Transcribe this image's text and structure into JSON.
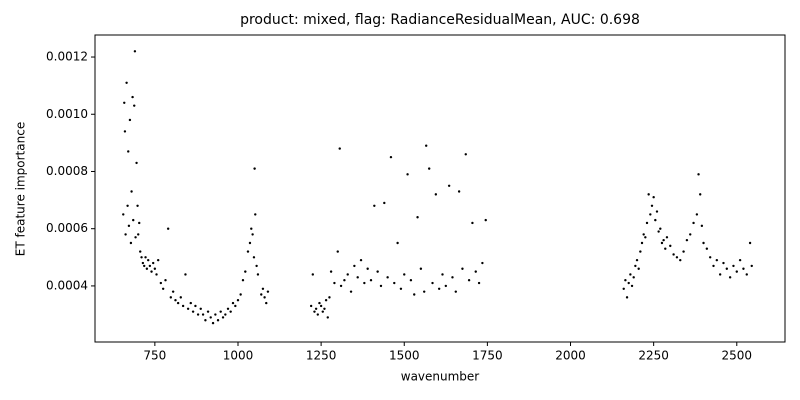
{
  "chart_data": {
    "type": "scatter",
    "title": "product: mixed, flag: RadianceResidualMean, AUC: 0.698",
    "x_label": "wavenumber",
    "y_label": "ET feature importance",
    "xlim": [
      570,
      2645
    ],
    "ylim": [
      0.000204,
      0.001277
    ],
    "xticks": [
      750,
      1000,
      1250,
      1500,
      1750,
      2000,
      2250,
      2500
    ],
    "yticks": [
      0.0004,
      0.0006,
      0.0008,
      {
        "value": 0.001,
        "label": "0.0010"
      },
      0.0012
    ],
    "grid": false,
    "series": [
      {
        "color": "#000000",
        "x": [
          655,
          658,
          660,
          662,
          665,
          668,
          670,
          672,
          675,
          678,
          680,
          683,
          685,
          688,
          690,
          692,
          695,
          698,
          700,
          703,
          706,
          710,
          714,
          718,
          722,
          726,
          730,
          735,
          740,
          745,
          750,
          755,
          760,
          768,
          775,
          782,
          790,
          798,
          805,
          812,
          820,
          828,
          835,
          842,
          850,
          858,
          865,
          872,
          880,
          888,
          895,
          902,
          910,
          918,
          925,
          932,
          940,
          948,
          955,
          962,
          970,
          978,
          985,
          992,
          1000,
          1008,
          1015,
          1022,
          1030,
          1036,
          1040,
          1044,
          1048,
          1050,
          1052,
          1056,
          1060,
          1070,
          1075,
          1080,
          1085,
          1090,
          1220,
          1225,
          1230,
          1235,
          1240,
          1245,
          1250,
          1255,
          1260,
          1265,
          1270,
          1275,
          1280,
          1290,
          1300,
          1306,
          1310,
          1320,
          1330,
          1340,
          1350,
          1360,
          1370,
          1380,
          1390,
          1400,
          1410,
          1420,
          1430,
          1440,
          1450,
          1460,
          1470,
          1480,
          1490,
          1500,
          1510,
          1520,
          1530,
          1540,
          1550,
          1560,
          1566,
          1575,
          1585,
          1595,
          1605,
          1615,
          1625,
          1635,
          1645,
          1655,
          1665,
          1675,
          1685,
          1695,
          1705,
          1715,
          1725,
          1735,
          1745,
          2160,
          2165,
          2170,
          2175,
          2180,
          2185,
          2190,
          2195,
          2200,
          2205,
          2210,
          2215,
          2220,
          2225,
          2230,
          2235,
          2240,
          2245,
          2250,
          2255,
          2260,
          2265,
          2270,
          2275,
          2280,
          2285,
          2290,
          2300,
          2310,
          2320,
          2330,
          2340,
          2350,
          2360,
          2370,
          2380,
          2385,
          2390,
          2395,
          2400,
          2410,
          2420,
          2430,
          2440,
          2450,
          2460,
          2470,
          2480,
          2490,
          2500,
          2510,
          2520,
          2530,
          2540,
          2545
        ],
        "values": [
          0.00065,
          0.00104,
          0.00094,
          0.00058,
          0.00111,
          0.00068,
          0.00087,
          0.00061,
          0.00098,
          0.00055,
          0.00073,
          0.00106,
          0.00063,
          0.00103,
          0.00122,
          0.00057,
          0.00083,
          0.00068,
          0.00058,
          0.00062,
          0.00052,
          0.0005,
          0.00048,
          0.00047,
          0.0005,
          0.00046,
          0.00049,
          0.00047,
          0.00045,
          0.00048,
          0.00046,
          0.00044,
          0.00049,
          0.00041,
          0.00039,
          0.00042,
          0.0006,
          0.00036,
          0.00038,
          0.00035,
          0.00034,
          0.00036,
          0.00033,
          0.00044,
          0.00032,
          0.00034,
          0.00031,
          0.00033,
          0.0003,
          0.00032,
          0.0003,
          0.00028,
          0.00031,
          0.00029,
          0.00027,
          0.0003,
          0.00028,
          0.00031,
          0.00029,
          0.0003,
          0.00032,
          0.00031,
          0.00034,
          0.00033,
          0.00035,
          0.00037,
          0.00042,
          0.00045,
          0.00052,
          0.00055,
          0.0006,
          0.00058,
          0.0005,
          0.00081,
          0.00065,
          0.00047,
          0.00044,
          0.00037,
          0.00039,
          0.00036,
          0.00034,
          0.00038,
          0.00033,
          0.00044,
          0.00031,
          0.00032,
          0.0003,
          0.00034,
          0.00033,
          0.00031,
          0.00032,
          0.00035,
          0.00029,
          0.00036,
          0.00045,
          0.00041,
          0.00052,
          0.00088,
          0.0004,
          0.00042,
          0.00044,
          0.00038,
          0.00047,
          0.00043,
          0.00049,
          0.00041,
          0.00046,
          0.00042,
          0.00068,
          0.00045,
          0.0004,
          0.00069,
          0.00043,
          0.00085,
          0.00041,
          0.00055,
          0.00039,
          0.00044,
          0.00079,
          0.00042,
          0.00037,
          0.00064,
          0.00046,
          0.00038,
          0.00089,
          0.00081,
          0.00041,
          0.00072,
          0.00039,
          0.00044,
          0.0004,
          0.00075,
          0.00043,
          0.00038,
          0.00073,
          0.00046,
          0.00086,
          0.00042,
          0.00062,
          0.00045,
          0.00041,
          0.00048,
          0.00063,
          0.00039,
          0.00042,
          0.00036,
          0.00041,
          0.00044,
          0.0004,
          0.00043,
          0.00047,
          0.00049,
          0.00046,
          0.00052,
          0.00055,
          0.00058,
          0.00057,
          0.00062,
          0.00072,
          0.00065,
          0.00068,
          0.00071,
          0.00063,
          0.00066,
          0.00059,
          0.0006,
          0.00055,
          0.00056,
          0.00053,
          0.00057,
          0.00054,
          0.00051,
          0.0005,
          0.00049,
          0.00052,
          0.00056,
          0.00058,
          0.00062,
          0.00065,
          0.00079,
          0.00072,
          0.00061,
          0.00055,
          0.00053,
          0.0005,
          0.00047,
          0.00049,
          0.00044,
          0.00048,
          0.00046,
          0.00043,
          0.00047,
          0.00045,
          0.00049,
          0.00046,
          0.00044,
          0.00055,
          0.00047
        ]
      }
    ]
  }
}
